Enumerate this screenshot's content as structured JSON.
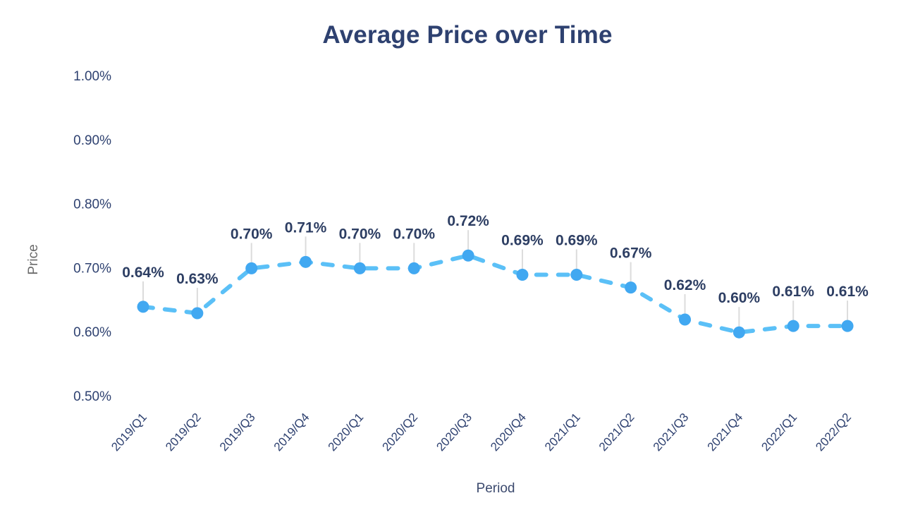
{
  "chart_data": {
    "type": "line",
    "title": "Average Price over Time",
    "xlabel": "Period",
    "ylabel": "Price",
    "categories": [
      "2019/Q1",
      "2019/Q2",
      "2019/Q3",
      "2019/Q4",
      "2020/Q1",
      "2020/Q2",
      "2020/Q3",
      "2020/Q4",
      "2021/Q1",
      "2021/Q2",
      "2021/Q3",
      "2021/Q4",
      "2022/Q1",
      "2022/Q2"
    ],
    "values": [
      0.64,
      0.63,
      0.7,
      0.71,
      0.7,
      0.7,
      0.72,
      0.69,
      0.69,
      0.67,
      0.62,
      0.6,
      0.61,
      0.61
    ],
    "labels": [
      "0.64%",
      "0.63%",
      "0.70%",
      "0.71%",
      "0.70%",
      "0.70%",
      "0.72%",
      "0.69%",
      "0.69%",
      "0.67%",
      "0.62%",
      "0.60%",
      "0.61%",
      "0.61%"
    ],
    "y_ticks": [
      {
        "label": "1.00%",
        "value": 1.0
      },
      {
        "label": "0.90%",
        "value": 0.9
      },
      {
        "label": "0.80%",
        "value": 0.8
      },
      {
        "label": "0.70%",
        "value": 0.7
      },
      {
        "label": "0.60%",
        "value": 0.6
      },
      {
        "label": "0.50%",
        "value": 0.5
      }
    ],
    "ylim": [
      0.5,
      1.0
    ],
    "line_style": "dashed",
    "grid": false,
    "legend": "none",
    "colors": {
      "line": "#5bc0f7",
      "marker": "#41a8f1",
      "data_label": "#2d3e63",
      "tick_text": "#2e4170",
      "y_axis_title": "#6a6a6a",
      "x_axis_title": "#3c4a6e",
      "leader_line": "#dcdcdc",
      "background": "#ffffff"
    }
  }
}
